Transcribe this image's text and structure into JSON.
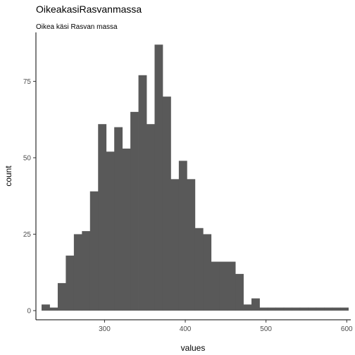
{
  "chart_data": {
    "type": "bar",
    "subtype": "histogram",
    "title": "OikeakasiRasvanmassa",
    "subtitle": "Oikea käsi Rasvan massa",
    "xlabel": "values",
    "ylabel": "count",
    "xlim": [
      215,
      605
    ],
    "ylim": [
      -3,
      91
    ],
    "xticks": [
      300,
      400,
      500,
      600
    ],
    "yticks": [
      0,
      25,
      50,
      75
    ],
    "grid": false,
    "legend": "none",
    "bin_width": 10,
    "bar_color": "#595959",
    "bins": [
      {
        "start": 222,
        "count": 2
      },
      {
        "start": 232,
        "count": 1
      },
      {
        "start": 242,
        "count": 9
      },
      {
        "start": 252,
        "count": 18
      },
      {
        "start": 262,
        "count": 25
      },
      {
        "start": 272,
        "count": 26
      },
      {
        "start": 282,
        "count": 39
      },
      {
        "start": 292,
        "count": 61
      },
      {
        "start": 302,
        "count": 52
      },
      {
        "start": 312,
        "count": 60
      },
      {
        "start": 322,
        "count": 53
      },
      {
        "start": 332,
        "count": 65
      },
      {
        "start": 342,
        "count": 77
      },
      {
        "start": 352,
        "count": 61
      },
      {
        "start": 362,
        "count": 87
      },
      {
        "start": 372,
        "count": 70
      },
      {
        "start": 382,
        "count": 43
      },
      {
        "start": 392,
        "count": 49
      },
      {
        "start": 402,
        "count": 43
      },
      {
        "start": 412,
        "count": 27
      },
      {
        "start": 422,
        "count": 25
      },
      {
        "start": 432,
        "count": 16
      },
      {
        "start": 442,
        "count": 16
      },
      {
        "start": 452,
        "count": 16
      },
      {
        "start": 462,
        "count": 12
      },
      {
        "start": 472,
        "count": 2
      },
      {
        "start": 482,
        "count": 4
      },
      {
        "start": 492,
        "count": 1
      },
      {
        "start": 502,
        "count": 1
      },
      {
        "start": 512,
        "count": 1
      },
      {
        "start": 522,
        "count": 1
      },
      {
        "start": 532,
        "count": 1
      },
      {
        "start": 542,
        "count": 1
      },
      {
        "start": 552,
        "count": 1
      },
      {
        "start": 562,
        "count": 1
      },
      {
        "start": 572,
        "count": 1
      },
      {
        "start": 582,
        "count": 1
      },
      {
        "start": 592,
        "count": 1
      }
    ]
  }
}
